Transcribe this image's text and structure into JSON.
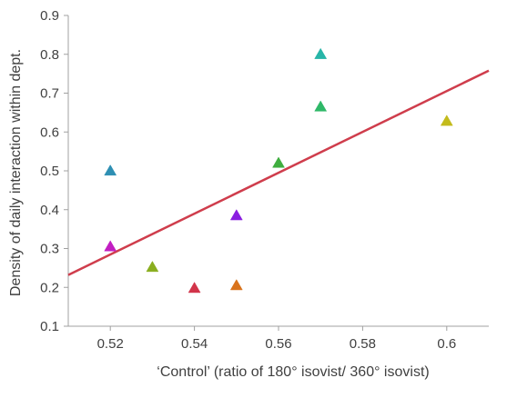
{
  "chart_data": {
    "type": "scatter",
    "title": "",
    "xlabel": "‘Control’ (ratio of 180° isovist/ 360° isovist)",
    "ylabel": "Density of daily interaction within dept.",
    "xlim": [
      0.51,
      0.61
    ],
    "ylim": [
      0.1,
      0.9
    ],
    "x_ticks": [
      0.52,
      0.54,
      0.56,
      0.58,
      0.6
    ],
    "x_tick_labels": [
      "0.52",
      "0.54",
      "0.56",
      "0.58",
      "0.6"
    ],
    "y_ticks": [
      0.1,
      0.2,
      0.3,
      0.4,
      0.5,
      0.6,
      0.7,
      0.8,
      0.9
    ],
    "y_tick_labels": [
      "0.1",
      "0.2",
      "0.3",
      "0.4",
      "0.5",
      "0.6",
      "0.7",
      "0.8",
      "0.9"
    ],
    "grid": false,
    "marker": "triangle",
    "points": [
      {
        "x": 0.52,
        "y": 0.5,
        "color": "#2e8fb3"
      },
      {
        "x": 0.52,
        "y": 0.305,
        "color": "#c21ec2"
      },
      {
        "x": 0.53,
        "y": 0.252,
        "color": "#8aae1f"
      },
      {
        "x": 0.54,
        "y": 0.198,
        "color": "#d2344a"
      },
      {
        "x": 0.55,
        "y": 0.385,
        "color": "#8a1ee0"
      },
      {
        "x": 0.55,
        "y": 0.205,
        "color": "#d9731c"
      },
      {
        "x": 0.56,
        "y": 0.52,
        "color": "#3fae3f"
      },
      {
        "x": 0.57,
        "y": 0.8,
        "color": "#28b5a8"
      },
      {
        "x": 0.57,
        "y": 0.665,
        "color": "#2fb868"
      },
      {
        "x": 0.6,
        "y": 0.628,
        "color": "#c3bb1c"
      }
    ],
    "fit_line": {
      "x": [
        0.51,
        0.61
      ],
      "y": [
        0.232,
        0.758
      ],
      "color": "#cf3d4c"
    }
  }
}
